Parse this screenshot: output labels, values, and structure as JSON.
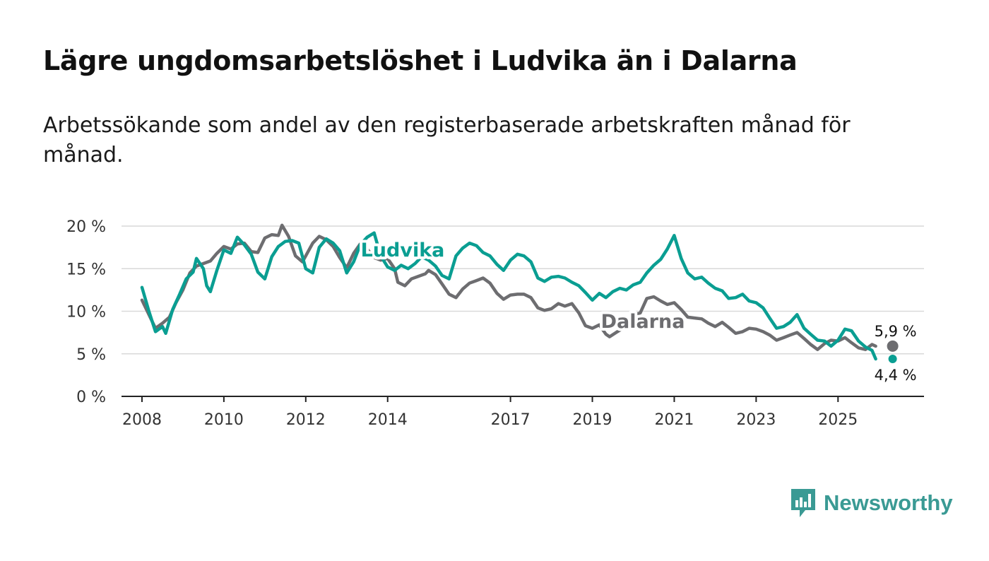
{
  "title": "Lägre ungdomsarbetslöshet i Ludvika än i Dalarna",
  "subtitle": "Arbetssökande som andel av den registerbaserade arbetskraften månad för månad.",
  "brand": {
    "name": "Newsworthy",
    "icon": "newsworthy-logo-icon"
  },
  "colors": {
    "ludvika": "#0a9e92",
    "dalarna": "#6d6d70",
    "grid": "#d9d9d9",
    "axis": "#222222"
  },
  "chart_data": {
    "type": "line",
    "title": "Lägre ungdomsarbetslöshet i Ludvika än i Dalarna",
    "xlabel": "",
    "ylabel": "",
    "xlim": [
      2007.5,
      2027.1
    ],
    "ylim": [
      0,
      20
    ],
    "grid": true,
    "y_ticks": [
      {
        "value": 0,
        "label": "0 %"
      },
      {
        "value": 5,
        "label": "5 %"
      },
      {
        "value": 10,
        "label": "10 %"
      },
      {
        "value": 15,
        "label": "15 %"
      },
      {
        "value": 20,
        "label": "20 %"
      }
    ],
    "x_ticks": [
      {
        "value": 2008,
        "label": "2008"
      },
      {
        "value": 2010,
        "label": "2010"
      },
      {
        "value": 2012,
        "label": "2012"
      },
      {
        "value": 2014,
        "label": "2014"
      },
      {
        "value": 2017,
        "label": "2017"
      },
      {
        "value": 2019,
        "label": "2019"
      },
      {
        "value": 2021,
        "label": "2021"
      },
      {
        "value": 2023,
        "label": "2023"
      },
      {
        "value": 2025,
        "label": "2025"
      }
    ],
    "series": [
      {
        "name": "Dalarna",
        "label": "Dalarna",
        "color": "#6d6d70",
        "end_label": "5,9 %",
        "points": [
          [
            2008.0,
            11.3
          ],
          [
            2008.17,
            9.6
          ],
          [
            2008.33,
            8.0
          ],
          [
            2008.5,
            8.6
          ],
          [
            2008.67,
            9.3
          ],
          [
            2008.83,
            11.0
          ],
          [
            2009.0,
            12.5
          ],
          [
            2009.17,
            14.5
          ],
          [
            2009.33,
            15.3
          ],
          [
            2009.5,
            15.6
          ],
          [
            2009.67,
            15.9
          ],
          [
            2009.83,
            16.8
          ],
          [
            2010.0,
            17.6
          ],
          [
            2010.17,
            17.3
          ],
          [
            2010.33,
            17.9
          ],
          [
            2010.5,
            18.0
          ],
          [
            2010.67,
            17.0
          ],
          [
            2010.83,
            16.9
          ],
          [
            2011.0,
            18.6
          ],
          [
            2011.17,
            19.0
          ],
          [
            2011.33,
            18.9
          ],
          [
            2011.42,
            20.1
          ],
          [
            2011.58,
            18.8
          ],
          [
            2011.75,
            16.5
          ],
          [
            2011.92,
            15.8
          ],
          [
            2012.0,
            16.5
          ],
          [
            2012.17,
            18.0
          ],
          [
            2012.33,
            18.8
          ],
          [
            2012.5,
            18.4
          ],
          [
            2012.67,
            17.6
          ],
          [
            2012.83,
            16.3
          ],
          [
            2013.0,
            15.1
          ],
          [
            2013.17,
            16.8
          ],
          [
            2013.33,
            17.9
          ],
          [
            2013.5,
            17.3
          ],
          [
            2013.67,
            16.3
          ],
          [
            2013.83,
            16.0
          ],
          [
            2014.0,
            16.2
          ],
          [
            2014.17,
            15.0
          ],
          [
            2014.25,
            13.4
          ],
          [
            2014.42,
            13.0
          ],
          [
            2014.58,
            13.8
          ],
          [
            2014.75,
            14.1
          ],
          [
            2014.92,
            14.4
          ],
          [
            2015.0,
            14.8
          ],
          [
            2015.17,
            14.3
          ],
          [
            2015.33,
            13.2
          ],
          [
            2015.5,
            12.0
          ],
          [
            2015.67,
            11.6
          ],
          [
            2015.83,
            12.6
          ],
          [
            2016.0,
            13.3
          ],
          [
            2016.17,
            13.6
          ],
          [
            2016.33,
            13.9
          ],
          [
            2016.5,
            13.3
          ],
          [
            2016.67,
            12.1
          ],
          [
            2016.83,
            11.4
          ],
          [
            2017.0,
            11.9
          ],
          [
            2017.17,
            12.0
          ],
          [
            2017.33,
            12.0
          ],
          [
            2017.5,
            11.6
          ],
          [
            2017.67,
            10.4
          ],
          [
            2017.83,
            10.1
          ],
          [
            2018.0,
            10.3
          ],
          [
            2018.17,
            10.9
          ],
          [
            2018.33,
            10.6
          ],
          [
            2018.5,
            10.9
          ],
          [
            2018.67,
            9.8
          ],
          [
            2018.83,
            8.3
          ],
          [
            2019.0,
            8.0
          ],
          [
            2019.17,
            8.4
          ],
          [
            2019.33,
            7.3
          ],
          [
            2019.42,
            7.0
          ],
          [
            2019.58,
            7.5
          ],
          [
            2019.75,
            8.0
          ],
          [
            2019.92,
            8.6
          ],
          [
            2020.0,
            9.5
          ],
          [
            2020.17,
            9.8
          ],
          [
            2020.33,
            11.5
          ],
          [
            2020.5,
            11.7
          ],
          [
            2020.67,
            11.2
          ],
          [
            2020.83,
            10.8
          ],
          [
            2021.0,
            11.0
          ],
          [
            2021.17,
            10.2
          ],
          [
            2021.33,
            9.3
          ],
          [
            2021.5,
            9.2
          ],
          [
            2021.67,
            9.1
          ],
          [
            2021.83,
            8.6
          ],
          [
            2022.0,
            8.2
          ],
          [
            2022.17,
            8.7
          ],
          [
            2022.33,
            8.1
          ],
          [
            2022.5,
            7.4
          ],
          [
            2022.67,
            7.6
          ],
          [
            2022.83,
            8.0
          ],
          [
            2023.0,
            7.9
          ],
          [
            2023.17,
            7.6
          ],
          [
            2023.33,
            7.2
          ],
          [
            2023.5,
            6.6
          ],
          [
            2023.67,
            6.9
          ],
          [
            2023.83,
            7.2
          ],
          [
            2024.0,
            7.5
          ],
          [
            2024.17,
            6.8
          ],
          [
            2024.33,
            6.1
          ],
          [
            2024.5,
            5.5
          ],
          [
            2024.67,
            6.2
          ],
          [
            2024.83,
            6.6
          ],
          [
            2025.0,
            6.5
          ],
          [
            2025.17,
            6.9
          ],
          [
            2025.33,
            6.3
          ],
          [
            2025.5,
            5.7
          ],
          [
            2025.67,
            5.5
          ],
          [
            2025.83,
            6.1
          ],
          [
            2025.92,
            5.9
          ]
        ]
      },
      {
        "name": "Ludvika",
        "label": "Ludvika",
        "color": "#0a9e92",
        "end_label": "4,4 %",
        "points": [
          [
            2008.0,
            12.8
          ],
          [
            2008.17,
            10.0
          ],
          [
            2008.33,
            7.6
          ],
          [
            2008.5,
            8.2
          ],
          [
            2008.58,
            7.4
          ],
          [
            2008.75,
            10.2
          ],
          [
            2008.92,
            12.0
          ],
          [
            2009.08,
            13.8
          ],
          [
            2009.25,
            14.6
          ],
          [
            2009.33,
            16.2
          ],
          [
            2009.5,
            15.0
          ],
          [
            2009.58,
            13.0
          ],
          [
            2009.67,
            12.3
          ],
          [
            2009.83,
            14.8
          ],
          [
            2010.0,
            17.2
          ],
          [
            2010.17,
            16.8
          ],
          [
            2010.33,
            18.7
          ],
          [
            2010.5,
            17.8
          ],
          [
            2010.67,
            16.7
          ],
          [
            2010.83,
            14.6
          ],
          [
            2011.0,
            13.8
          ],
          [
            2011.17,
            16.4
          ],
          [
            2011.33,
            17.6
          ],
          [
            2011.5,
            18.2
          ],
          [
            2011.67,
            18.3
          ],
          [
            2011.83,
            18.0
          ],
          [
            2012.0,
            15.0
          ],
          [
            2012.17,
            14.5
          ],
          [
            2012.33,
            17.5
          ],
          [
            2012.5,
            18.5
          ],
          [
            2012.67,
            18.0
          ],
          [
            2012.83,
            17.1
          ],
          [
            2013.0,
            14.5
          ],
          [
            2013.17,
            15.8
          ],
          [
            2013.33,
            17.8
          ],
          [
            2013.5,
            18.7
          ],
          [
            2013.67,
            19.2
          ],
          [
            2013.83,
            16.5
          ],
          [
            2014.0,
            15.2
          ],
          [
            2014.17,
            14.8
          ],
          [
            2014.33,
            15.4
          ],
          [
            2014.5,
            15.0
          ],
          [
            2014.67,
            15.6
          ],
          [
            2014.83,
            16.4
          ],
          [
            2015.0,
            16.0
          ],
          [
            2015.17,
            15.3
          ],
          [
            2015.33,
            14.2
          ],
          [
            2015.5,
            13.8
          ],
          [
            2015.67,
            16.5
          ],
          [
            2015.83,
            17.4
          ],
          [
            2016.0,
            18.0
          ],
          [
            2016.17,
            17.7
          ],
          [
            2016.33,
            16.9
          ],
          [
            2016.5,
            16.5
          ],
          [
            2016.67,
            15.5
          ],
          [
            2016.83,
            14.8
          ],
          [
            2017.0,
            16.0
          ],
          [
            2017.17,
            16.7
          ],
          [
            2017.33,
            16.5
          ],
          [
            2017.5,
            15.8
          ],
          [
            2017.67,
            13.9
          ],
          [
            2017.83,
            13.5
          ],
          [
            2018.0,
            14.0
          ],
          [
            2018.17,
            14.1
          ],
          [
            2018.33,
            13.9
          ],
          [
            2018.5,
            13.4
          ],
          [
            2018.67,
            13.0
          ],
          [
            2018.83,
            12.2
          ],
          [
            2019.0,
            11.3
          ],
          [
            2019.17,
            12.1
          ],
          [
            2019.33,
            11.6
          ],
          [
            2019.5,
            12.3
          ],
          [
            2019.67,
            12.7
          ],
          [
            2019.83,
            12.5
          ],
          [
            2020.0,
            13.1
          ],
          [
            2020.17,
            13.4
          ],
          [
            2020.33,
            14.5
          ],
          [
            2020.5,
            15.4
          ],
          [
            2020.67,
            16.1
          ],
          [
            2020.83,
            17.3
          ],
          [
            2021.0,
            18.9
          ],
          [
            2021.17,
            16.2
          ],
          [
            2021.33,
            14.5
          ],
          [
            2021.5,
            13.8
          ],
          [
            2021.67,
            14.0
          ],
          [
            2021.83,
            13.3
          ],
          [
            2022.0,
            12.7
          ],
          [
            2022.17,
            12.4
          ],
          [
            2022.33,
            11.5
          ],
          [
            2022.5,
            11.6
          ],
          [
            2022.67,
            12.0
          ],
          [
            2022.83,
            11.2
          ],
          [
            2023.0,
            11.0
          ],
          [
            2023.17,
            10.4
          ],
          [
            2023.33,
            9.2
          ],
          [
            2023.5,
            8.0
          ],
          [
            2023.67,
            8.2
          ],
          [
            2023.83,
            8.7
          ],
          [
            2024.0,
            9.6
          ],
          [
            2024.17,
            8.0
          ],
          [
            2024.33,
            7.3
          ],
          [
            2024.5,
            6.6
          ],
          [
            2024.67,
            6.5
          ],
          [
            2024.83,
            5.9
          ],
          [
            2025.0,
            6.6
          ],
          [
            2025.17,
            7.9
          ],
          [
            2025.33,
            7.7
          ],
          [
            2025.5,
            6.5
          ],
          [
            2025.67,
            5.8
          ],
          [
            2025.83,
            5.4
          ],
          [
            2025.92,
            4.4
          ]
        ]
      }
    ]
  }
}
